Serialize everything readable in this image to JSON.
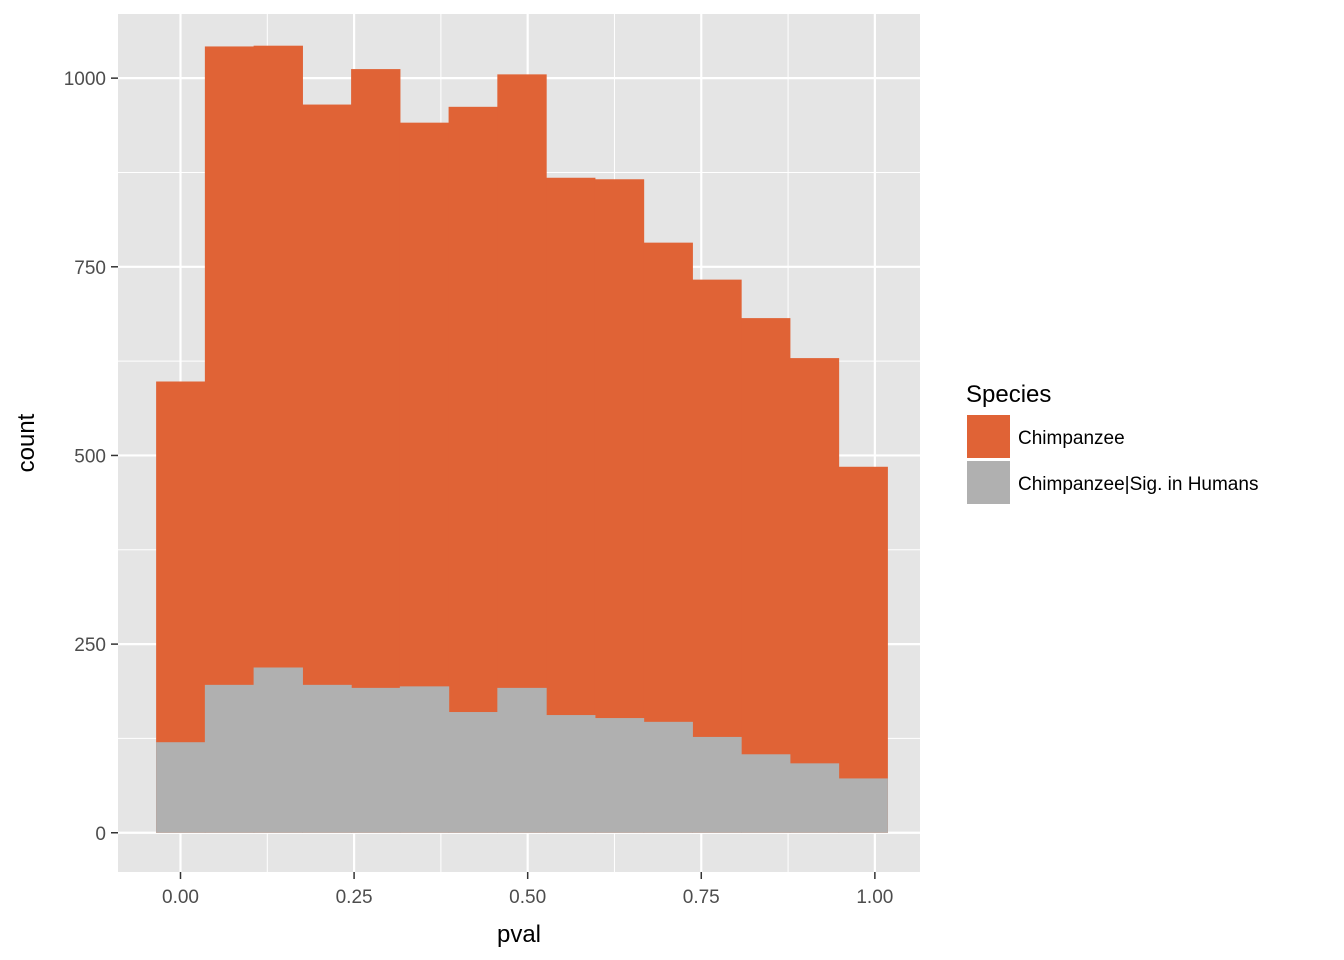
{
  "chart_data": {
    "type": "bar",
    "subtype": "stacked-histogram",
    "xlabel": "pval",
    "ylabel": "count",
    "xlim": [
      -0.09,
      1.065
    ],
    "ylim": [
      -52,
      1085
    ],
    "x_ticks": [
      0.0,
      0.25,
      0.5,
      0.75,
      1.0
    ],
    "x_tick_labels": [
      "0.00",
      "0.25",
      "0.50",
      "0.75",
      "1.00"
    ],
    "y_ticks": [
      0,
      250,
      500,
      750,
      1000
    ],
    "y_tick_labels": [
      "0",
      "250",
      "500",
      "750",
      "1000"
    ],
    "grid": true,
    "legend_position": "right",
    "legend": {
      "title": "Species",
      "entries": [
        {
          "label": "Chimpanzee",
          "color": "#E06336"
        },
        {
          "label": "Chimpanzee|Sig. in Humans",
          "color": "#B0B0B0"
        }
      ]
    },
    "bin_width": 0.0702,
    "bin_start": -0.0351,
    "bin_end": 1.0179,
    "series": [
      {
        "name": "Chimpanzee",
        "color": "#E06336",
        "values": [
          598,
          1042,
          1043,
          965,
          1012,
          941,
          962,
          1005,
          868,
          866,
          782,
          733,
          682,
          629,
          485
        ]
      },
      {
        "name": "Chimpanzee|Sig. in Humans",
        "color": "#B0B0B0",
        "values": [
          120,
          196,
          219,
          196,
          192,
          194,
          160,
          192,
          156,
          152,
          147,
          127,
          104,
          92,
          72
        ]
      }
    ],
    "colors": {
      "panel_background": "#E5E5E5",
      "grid_line": "#FFFFFF",
      "tick_mark": "#333333"
    }
  }
}
